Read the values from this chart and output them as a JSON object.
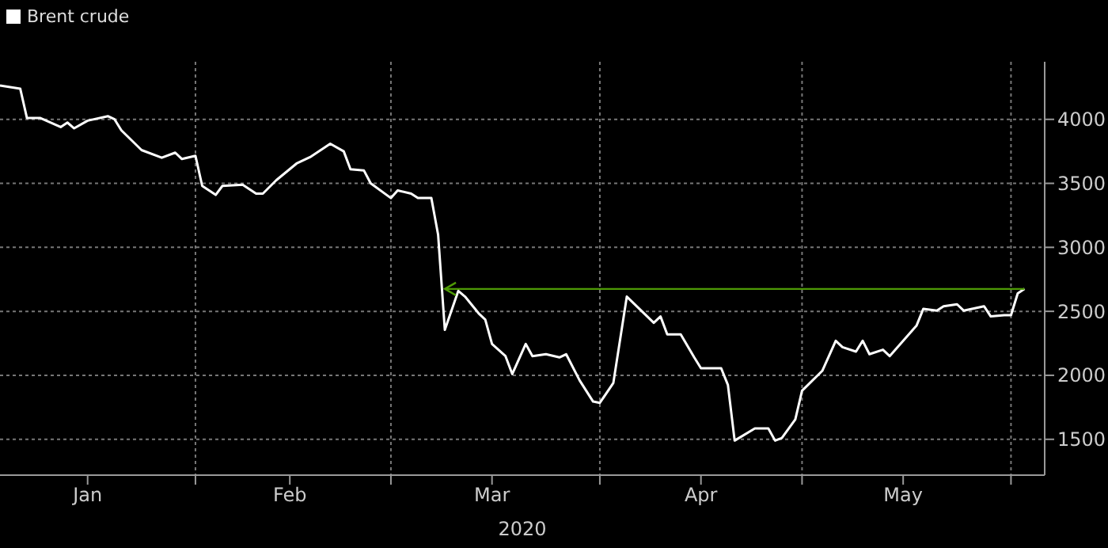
{
  "chart_data": {
    "type": "line",
    "xlabel": "2020",
    "legend": "top left",
    "grid": true,
    "marker": "none",
    "line_style": "solid",
    "x": [
      "2020-01-03",
      "2020-01-06",
      "2020-01-07",
      "2020-01-09",
      "2020-01-12",
      "2020-01-13",
      "2020-01-14",
      "2020-01-16",
      "2020-01-19",
      "2020-01-20",
      "2020-01-21",
      "2020-01-24",
      "2020-01-27",
      "2020-01-29",
      "2020-01-30",
      "2020-02-01",
      "2020-02-02",
      "2020-02-04",
      "2020-02-05",
      "2020-02-08",
      "2020-02-10",
      "2020-02-11",
      "2020-02-13",
      "2020-02-16",
      "2020-02-18",
      "2020-02-21",
      "2020-02-23",
      "2020-02-24",
      "2020-02-26",
      "2020-02-27",
      "2020-03-01",
      "2020-03-02",
      "2020-03-04",
      "2020-03-05",
      "2020-03-07",
      "2020-03-08",
      "2020-03-09",
      "2020-03-11",
      "2020-03-12",
      "2020-03-14",
      "2020-03-15",
      "2020-03-16",
      "2020-03-18",
      "2020-03-19",
      "2020-03-21",
      "2020-03-22",
      "2020-03-24",
      "2020-03-26",
      "2020-03-27",
      "2020-03-29",
      "2020-03-31",
      "2020-04-01",
      "2020-04-03",
      "2020-04-05",
      "2020-04-09",
      "2020-04-10",
      "2020-04-11",
      "2020-04-13",
      "2020-04-15",
      "2020-04-16",
      "2020-04-19",
      "2020-04-20",
      "2020-04-21",
      "2020-04-24",
      "2020-04-26",
      "2020-04-27",
      "2020-04-28",
      "2020-04-30",
      "2020-05-01",
      "2020-05-04",
      "2020-05-06",
      "2020-05-07",
      "2020-05-09",
      "2020-05-10",
      "2020-05-11",
      "2020-05-13",
      "2020-05-14",
      "2020-05-18",
      "2020-05-19",
      "2020-05-21",
      "2020-05-22",
      "2020-05-24",
      "2020-05-25",
      "2020-05-28",
      "2020-05-29",
      "2020-05-31",
      "2020-06-01",
      "2020-06-02",
      "2020-06-03"
    ],
    "series": [
      {
        "name": "Brent crude",
        "color": "#ffffff",
        "values": [
          4265,
          4240,
          4010,
          4010,
          3940,
          3975,
          3930,
          3990,
          4025,
          4000,
          3915,
          3760,
          3700,
          3740,
          3690,
          3715,
          3480,
          3410,
          3480,
          3490,
          3420,
          3420,
          3525,
          3655,
          3705,
          3810,
          3750,
          3610,
          3600,
          3500,
          3385,
          3445,
          3420,
          3385,
          3385,
          3100,
          2355,
          2660,
          2615,
          2485,
          2435,
          2245,
          2150,
          2010,
          2245,
          2150,
          2165,
          2140,
          2165,
          1960,
          1795,
          1785,
          1940,
          2615,
          2410,
          2460,
          2320,
          2320,
          2140,
          2055,
          2055,
          1925,
          1490,
          1585,
          1585,
          1490,
          1510,
          1655,
          1880,
          2035,
          2270,
          2220,
          2185,
          2270,
          2165,
          2200,
          2150,
          2390,
          2520,
          2505,
          2540,
          2555,
          2505,
          2540,
          2460,
          2470,
          2470,
          2640,
          2675
        ]
      }
    ],
    "xlim": [
      "2020-01-03",
      "2020-06-06"
    ],
    "xticks": [
      {
        "value": "2020-01-16",
        "label": "Jan"
      },
      {
        "value": "2020-02-01",
        "label": null
      },
      {
        "value": "2020-02-15",
        "label": "Feb"
      },
      {
        "value": "2020-03-01",
        "label": null
      },
      {
        "value": "2020-03-16",
        "label": "Mar"
      },
      {
        "value": "2020-04-01",
        "label": null
      },
      {
        "value": "2020-04-16",
        "label": "Apr"
      },
      {
        "value": "2020-05-01",
        "label": null
      },
      {
        "value": "2020-05-16",
        "label": "May"
      },
      {
        "value": "2020-06-01",
        "label": null
      }
    ],
    "ylim": [
      1220,
      4450
    ],
    "yticks": [
      1500,
      2000,
      2500,
      3000,
      3500,
      4000
    ],
    "ref_lines": [
      {
        "axis": "y",
        "value": 2675,
        "label": null,
        "color": "#4e9a06",
        "line_style": "solid"
      }
    ]
  }
}
